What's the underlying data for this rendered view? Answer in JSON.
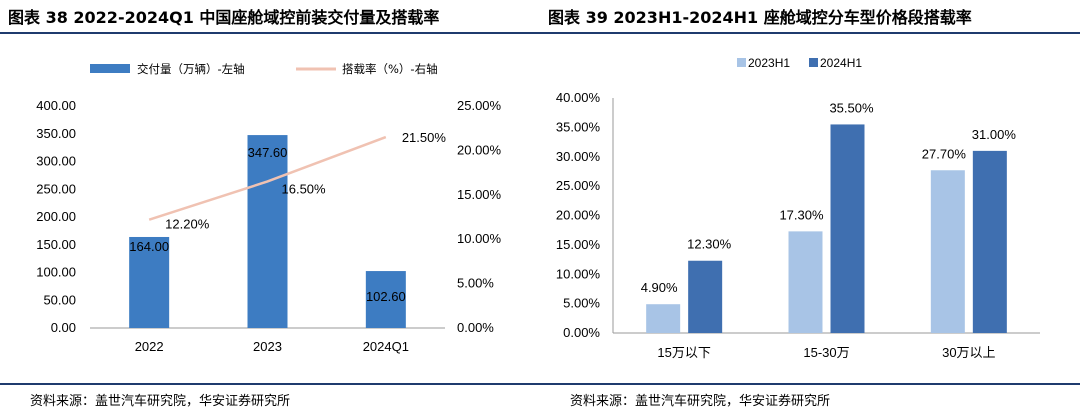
{
  "left": {
    "title": "图表 38 2022-2024Q1 中国座舱域控前装交付量及搭载率",
    "source": "资料来源：盖世汽车研究院，华安证券研究所",
    "colors": {
      "bar": "#3d7cc2",
      "line": "#f0c2b2"
    }
  },
  "right": {
    "title": "图表 39 2023H1-2024H1 座舱域控分车型价格段搭载率",
    "source": "资料来源：盖世汽车研究院，华安证券研究所",
    "colors": {
      "s1": "#a8c4e6",
      "s2": "#3f6fb0"
    }
  },
  "chart_data": [
    {
      "type": "bar",
      "categories": [
        "2022",
        "2023",
        "2024Q1"
      ],
      "series": [
        {
          "name": "交付量（万辆）-左轴",
          "type": "bar",
          "axis": "left",
          "values": [
            164.0,
            347.6,
            102.6
          ],
          "labels": [
            "164.00",
            "347.60",
            "102.60"
          ]
        },
        {
          "name": "搭载率（%）-右轴",
          "type": "line",
          "axis": "right",
          "values": [
            12.2,
            16.5,
            21.5
          ],
          "labels": [
            "12.20%",
            "16.50%",
            "21.50%"
          ]
        }
      ],
      "ylim_left": [
        0,
        400
      ],
      "yticks_left": [
        "0.00",
        "50.00",
        "100.00",
        "150.00",
        "200.00",
        "250.00",
        "300.00",
        "350.00",
        "400.00"
      ],
      "ylim_right": [
        0,
        25
      ],
      "yticks_right": [
        "0.00%",
        "5.00%",
        "10.00%",
        "15.00%",
        "20.00%",
        "25.00%"
      ],
      "legend_position": "top",
      "grid": false
    },
    {
      "type": "bar",
      "categories": [
        "15万以下",
        "15-30万",
        "30万以上"
      ],
      "series": [
        {
          "name": "2023H1",
          "values": [
            4.9,
            17.3,
            27.7
          ],
          "labels": [
            "4.90%",
            "17.30%",
            "27.70%"
          ]
        },
        {
          "name": "2024H1",
          "values": [
            12.3,
            35.5,
            31.0
          ],
          "labels": [
            "12.30%",
            "35.50%",
            "31.00%"
          ]
        }
      ],
      "ylim": [
        0,
        40
      ],
      "yticks": [
        "0.00%",
        "5.00%",
        "10.00%",
        "15.00%",
        "20.00%",
        "25.00%",
        "30.00%",
        "35.00%",
        "40.00%"
      ],
      "legend_position": "top",
      "grid": false
    }
  ]
}
